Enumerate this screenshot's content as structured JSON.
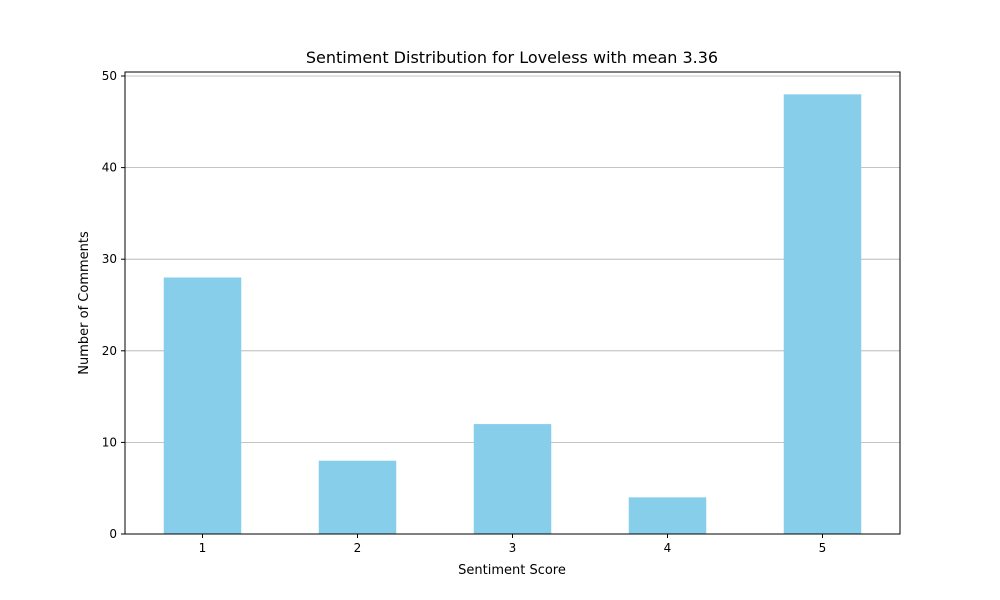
{
  "chart_data": {
    "type": "bar",
    "title": "Sentiment Distribution for Loveless with mean 3.36",
    "xlabel": "Sentiment Score",
    "ylabel": "Number of Comments",
    "categories": [
      "1",
      "2",
      "3",
      "4",
      "5"
    ],
    "values": [
      28,
      8,
      12,
      4,
      48
    ],
    "ylim": [
      0,
      50
    ],
    "yticks": [
      "0",
      "10",
      "20",
      "30",
      "40",
      "50"
    ],
    "grid": "y",
    "bar_color": "#87CEEB"
  }
}
